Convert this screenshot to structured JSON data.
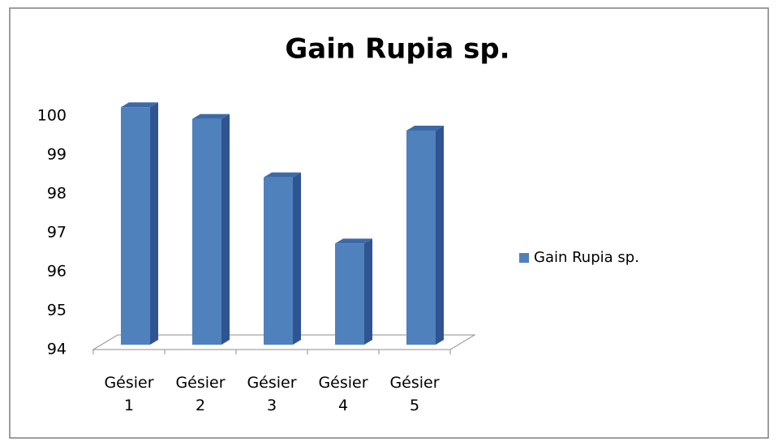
{
  "chart_data": {
    "type": "bar3d",
    "title": "Gain Rupia sp.",
    "categories": [
      "Gésier 1",
      "Gésier 2",
      "Gésier 3",
      "Gésier 4",
      "Gésier 5"
    ],
    "series": [
      {
        "name": "Gain Rupia sp.",
        "color": "#4f81bd",
        "values": [
          100.1,
          99.8,
          98.3,
          96.6,
          99.5
        ]
      }
    ],
    "ylim": [
      94,
      100
    ],
    "yticks": [
      94,
      95,
      96,
      97,
      98,
      99,
      100
    ],
    "grid": false,
    "legend": "right"
  }
}
